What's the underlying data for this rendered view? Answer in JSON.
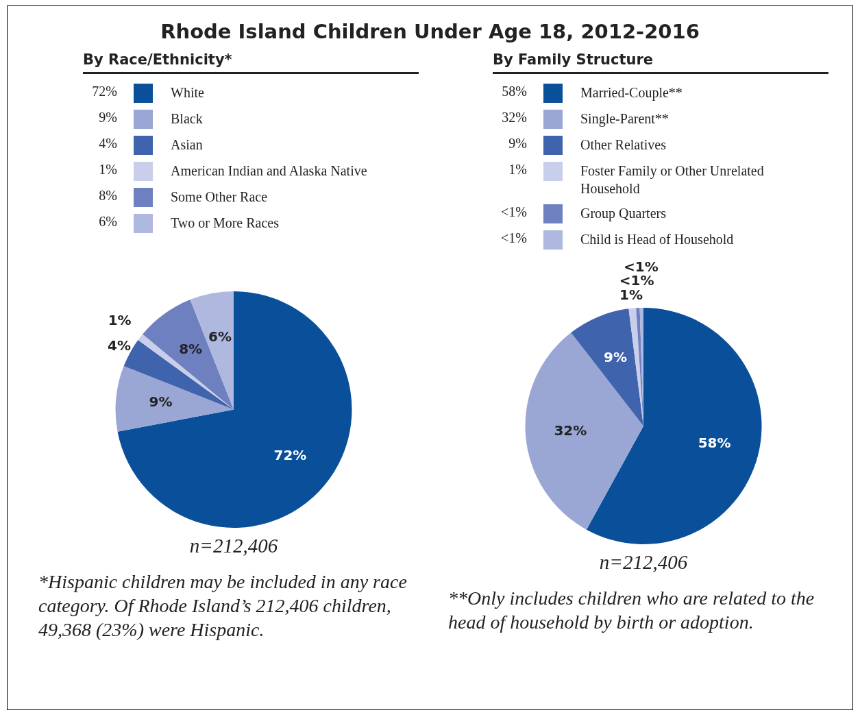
{
  "chart_data": [
    {
      "type": "pie",
      "title": "Rhode Island Children Under Age 18, 2012-2016",
      "subtitle": "By Race/Ethnicity*",
      "categories": [
        "White",
        "Black",
        "Asian",
        "American Indian and Alaska Native",
        "Some Other Race",
        "Two or More Races"
      ],
      "values": [
        72,
        9,
        4,
        1,
        8,
        6
      ],
      "value_labels": [
        "72%",
        "9%",
        "4%",
        "1%",
        "8%",
        "6%"
      ],
      "colors": [
        "#0a4f9a",
        "#9aa6d4",
        "#3f63ad",
        "#c9cfea",
        "#6f80c0",
        "#afb8de"
      ],
      "legend": "top",
      "annotations": [
        "n=212,406",
        "*Hispanic children may be included in any race category. Of Rhode Island’s 212,406 children, 49,368 (23%) were Hispanic."
      ]
    },
    {
      "type": "pie",
      "subtitle": "By Family Structure",
      "categories": [
        "Married-Couple**",
        "Single-Parent**",
        "Other Relatives",
        "Foster Family or Other Unrelated Household",
        "Group Quarters",
        "Child is Head of Household"
      ],
      "values": [
        58,
        31.5,
        8.5,
        1,
        0.5,
        0.5
      ],
      "value_labels": [
        "58%",
        "32%",
        "9%",
        "1%",
        "<1%",
        "<1%"
      ],
      "colors": [
        "#0a4f9a",
        "#9aa6d4",
        "#3f63ad",
        "#c9cfea",
        "#6f80c0",
        "#afb8de"
      ],
      "legend": "top",
      "annotations": [
        "n=212,406",
        "**Only includes children who are related to the head of household by birth or adoption."
      ]
    }
  ]
}
